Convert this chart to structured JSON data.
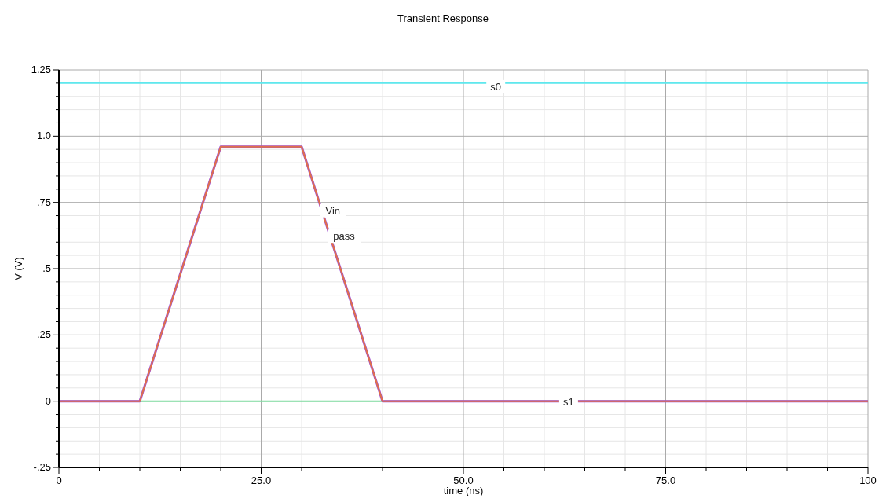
{
  "chart_data": {
    "type": "line",
    "title": "Transient Response",
    "xlabel": "time (ns)",
    "ylabel": "V (V)",
    "xlim": [
      0,
      100
    ],
    "xticks": [
      0,
      {
        "value": 25,
        "label": "25.0"
      },
      {
        "value": 50,
        "label": "50.0"
      },
      {
        "value": 75,
        "label": "75.0"
      },
      100
    ],
    "ylim": [
      -0.25,
      1.25
    ],
    "yticks": [
      {
        "value": -0.25,
        "label": "-.25"
      },
      0,
      {
        "value": 0.25,
        "label": ".25"
      },
      {
        "value": 0.5,
        "label": ".5"
      },
      {
        "value": 0.75,
        "label": ".75"
      },
      {
        "value": 1,
        "label": "1.0"
      },
      1.25
    ],
    "grid": true,
    "marker": "none",
    "line_style": "solid",
    "series": [
      {
        "name": "s0",
        "color": "#5ee8ee",
        "x": [
          0,
          100
        ],
        "values": [
          1.2,
          1.2
        ]
      },
      {
        "name": "s1",
        "color": "#7fdca0",
        "x": [
          0,
          100
        ],
        "values": [
          0,
          0
        ]
      },
      {
        "name": "Vin",
        "color": "#9a4fe0",
        "x": [
          0,
          10,
          20,
          30,
          40,
          100
        ],
        "values": [
          0,
          0,
          0.96,
          0.96,
          0,
          0
        ]
      },
      {
        "name": "pass",
        "color": "#e0704a",
        "x": [
          0,
          10,
          20,
          30,
          40,
          100
        ],
        "values": [
          0,
          0,
          0.96,
          0.96,
          0,
          0
        ]
      }
    ]
  }
}
